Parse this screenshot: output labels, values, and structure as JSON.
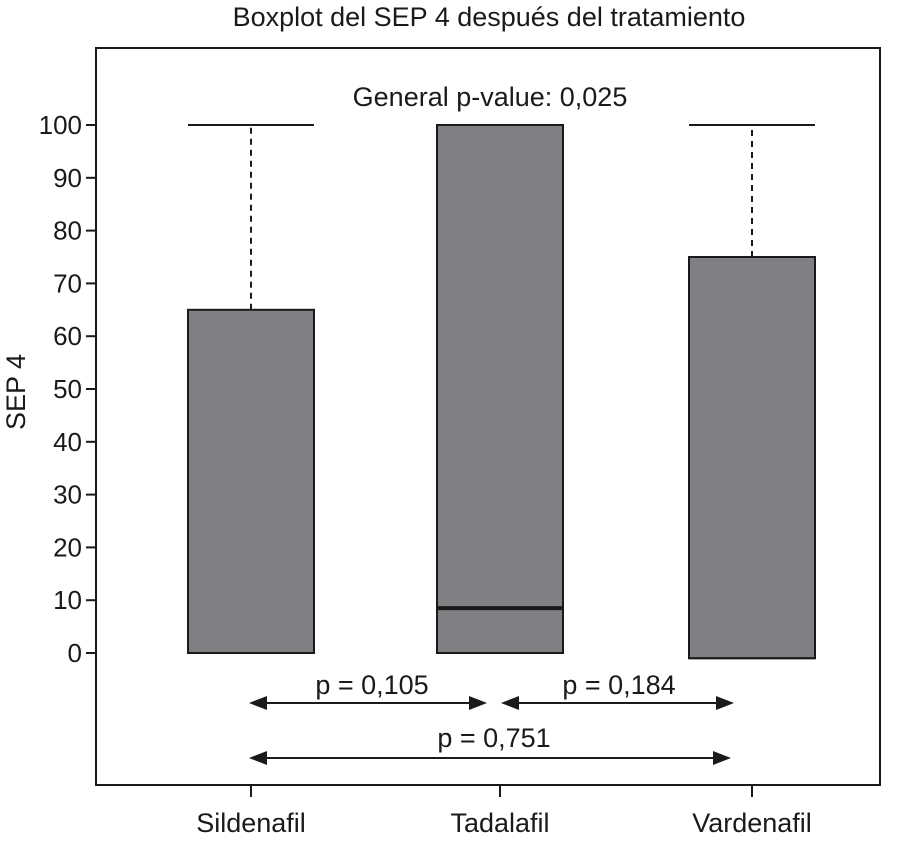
{
  "chart_data": {
    "type": "boxplot",
    "title": "Boxplot del SEP 4 después del tratamiento",
    "ylabel": "SEP 4",
    "xlabel": "",
    "ylim": [
      -12,
      110
    ],
    "yticks": [
      0,
      10,
      20,
      30,
      40,
      50,
      60,
      70,
      80,
      90,
      100
    ],
    "grid": false,
    "categories": [
      "Sildenafil",
      "Tadalafil",
      "Vardenafil"
    ],
    "boxes": [
      {
        "category": "Sildenafil",
        "whisker_low": 0,
        "q1": 0,
        "median": 0,
        "q3": 65,
        "whisker_high": 100
      },
      {
        "category": "Tadalafil",
        "whisker_low": 0,
        "q1": 0,
        "median": 8.5,
        "q3": 100,
        "whisker_high": 100
      },
      {
        "category": "Vardenafil",
        "whisker_low": -1,
        "q1": -1,
        "median": -1,
        "q3": 75,
        "whisker_high": 100
      }
    ],
    "annotations": [
      {
        "id": "general",
        "text": "General p-value: 0,025"
      },
      {
        "id": "p1",
        "text": "p = 0,105",
        "from": "Sildenafil",
        "to": "Tadalafil"
      },
      {
        "id": "p2",
        "text": "p = 0,184",
        "from": "Tadalafil",
        "to": "Vardenafil"
      },
      {
        "id": "p3",
        "text": "p = 0,751",
        "from": "Sildenafil",
        "to": "Vardenafil"
      }
    ],
    "colors": {
      "box_fill": "#7f8083",
      "stroke": "#1a1a1a"
    }
  }
}
